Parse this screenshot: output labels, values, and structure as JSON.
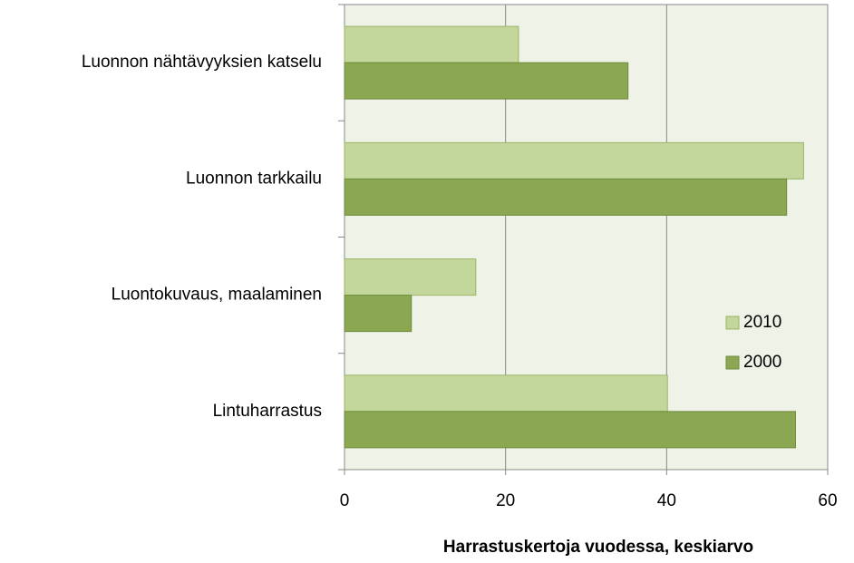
{
  "chart_data": {
    "type": "bar",
    "orientation": "horizontal",
    "x_label": "Harrastuskertoja vuodessa, keskiarvo",
    "categories": [
      "Luonnon nähtävyyksien katselu",
      "Luonnon tarkkailu",
      "Luontokuvaus, maalaminen",
      "Lintuharrastus"
    ],
    "series": [
      {
        "name": "2010",
        "color": "#c3d69b",
        "values": [
          21.6,
          57.0,
          16.3,
          40.1
        ]
      },
      {
        "name": "2000",
        "color": "#8ba752",
        "values": [
          35.2,
          54.9,
          8.3,
          56.0
        ]
      }
    ],
    "xlim": [
      0,
      60
    ],
    "xticks": [
      0,
      20,
      40,
      60
    ],
    "grid": true,
    "legend": "right"
  }
}
